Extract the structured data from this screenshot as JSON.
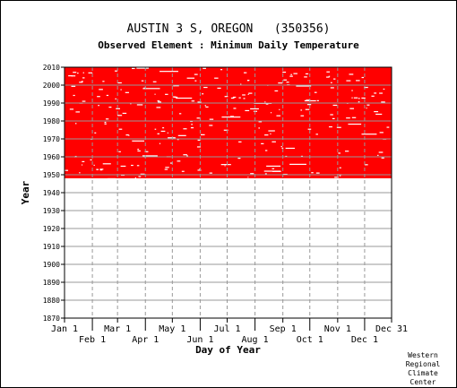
{
  "chart_data": {
    "type": "heatmap",
    "title": "AUSTIN 3 S, OREGON   (350356)",
    "subtitle": "Observed Element : Minimum Daily Temperature",
    "xlabel": "Day of Year",
    "ylabel": "Year",
    "x_ticks_upper": [
      "Jan 1",
      "Mar 1",
      "May 1",
      "Jul 1",
      "Sep 1",
      "Nov 1",
      "Dec 31"
    ],
    "x_ticks_lower": [
      "Feb 1",
      "Apr 1",
      "Jun 1",
      "Aug 1",
      "Oct 1",
      "Dec 1"
    ],
    "x_tick_days": [
      1,
      32,
      60,
      91,
      121,
      152,
      182,
      213,
      244,
      274,
      305,
      335,
      365
    ],
    "y_ticks": [
      "2010",
      "2000",
      "1990",
      "1980",
      "1970",
      "1960",
      "1950",
      "1940",
      "1930",
      "1920",
      "1910",
      "1900",
      "1890",
      "1880",
      "1870"
    ],
    "ylim": [
      1870,
      2010
    ],
    "xlim": [
      1,
      365
    ],
    "data_present_years": [
      1948,
      2010
    ],
    "data_color": "#ff0000",
    "grid": true
  },
  "credit": [
    "Western",
    "Regional",
    "Climate",
    "Center"
  ]
}
